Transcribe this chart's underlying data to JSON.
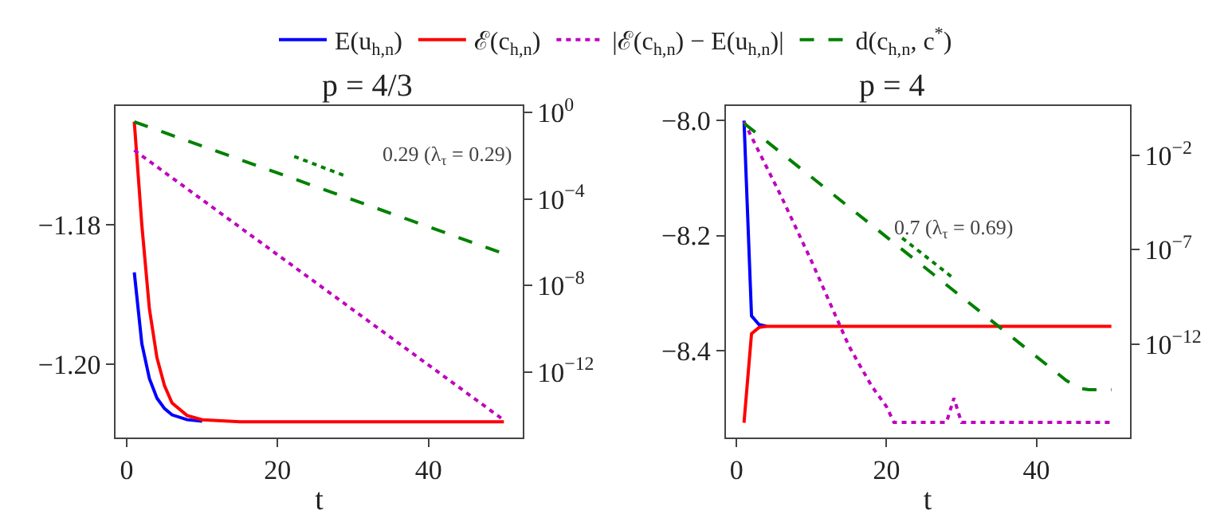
{
  "chart_data": [
    {
      "type": "line",
      "title": "p = 4/3",
      "xlabel": "t",
      "legend": "top",
      "log": "y2",
      "xlim": [
        -1.45,
        52.45
      ],
      "xticks": [
        0,
        20,
        40
      ],
      "ylim": [
        -1.2104,
        -1.163
      ],
      "yticks": [
        {
          "value": -1.18,
          "label": "−1.18"
        },
        {
          "value": -1.2,
          "label": "−1.20"
        }
      ],
      "y2lim": [
        9.6e-16,
        1.95
      ],
      "y2ticks": [
        {
          "value": 1,
          "label": "10$^{0}$"
        },
        {
          "value": 0.0001,
          "label": "10$^{−4}$"
        },
        {
          "value": 1e-08,
          "label": "10$^{−8}$"
        },
        {
          "value": 1e-12,
          "label": "10$^{−12}$"
        }
      ],
      "series": [
        {
          "name": "E(u$_{h,n}$)",
          "color": "#0000ff",
          "line_style": "solid",
          "axis": "y",
          "x": [
            1,
            2,
            3,
            4,
            5,
            6,
            8,
            10
          ],
          "values": [
            -1.1868,
            -1.197,
            -1.202,
            -1.2048,
            -1.2063,
            -1.2072,
            -1.2079,
            -1.2081
          ]
        },
        {
          "name": "ℰ(c$_{h,n}$)",
          "color": "#ff0000",
          "line_style": "solid",
          "axis": "y",
          "x": [
            1,
            2,
            3,
            4,
            5,
            6,
            8,
            10,
            15,
            20,
            30,
            40,
            50
          ],
          "values": [
            -1.1652,
            -1.18,
            -1.192,
            -1.199,
            -1.203,
            -1.2055,
            -1.2073,
            -1.2079,
            -1.2082,
            -1.2082,
            -1.2082,
            -1.2082,
            -1.2082
          ]
        },
        {
          "name": "|ℰ(c$_{h,n}$) − E(u$_{h,n}$)|",
          "color": "#bf00bf",
          "line_style": "dotted",
          "axis": "y2",
          "x": [
            1,
            25,
            50
          ],
          "values": [
            0.018,
            1.4e-08,
            5.9e-15
          ]
        },
        {
          "name": "d(c$_{h,n}$, c$^{*}$)",
          "color": "#008000",
          "line_style": "dashed",
          "axis": "y2",
          "x": [
            1,
            25,
            50
          ],
          "values": [
            0.37,
            0.00038,
            2.95e-07
          ]
        },
        {
          "color": "#008000",
          "line_style": "dotted",
          "axis": "y2",
          "x": [
            22.2,
            29
          ],
          "values": [
            0.0093,
            0.00115
          ]
        }
      ],
      "annotations": [
        "0.29 (λ$_{τ}$ = 0.29)"
      ]
    },
    {
      "type": "line",
      "title": "p = 4",
      "xlabel": "t",
      "log": "y2",
      "xlim": [
        -1.45,
        52.45
      ],
      "xticks": [
        0,
        20,
        40
      ],
      "ylim": [
        -8.551,
        -7.975
      ],
      "yticks": [
        {
          "value": -8.0,
          "label": "−8.0"
        },
        {
          "value": -8.2,
          "label": "−8.2"
        },
        {
          "value": -8.4,
          "label": "−8.4"
        }
      ],
      "y2lim": [
        1.2e-17,
        4
      ],
      "y2ticks": [
        {
          "value": 0.01,
          "label": "10$^{−2}$"
        },
        {
          "value": 1e-07,
          "label": "10$^{−7}$"
        },
        {
          "value": 1e-12,
          "label": "10$^{−12}$"
        }
      ],
      "series": [
        {
          "color": "#0000ff",
          "line_style": "solid",
          "axis": "y",
          "x": [
            1,
            2,
            3,
            4
          ],
          "values": [
            -8.0,
            -8.34,
            -8.355,
            -8.358
          ]
        },
        {
          "color": "#ff0000",
          "line_style": "solid",
          "axis": "y",
          "x": [
            1,
            2,
            3,
            4,
            10,
            20,
            30,
            40,
            50
          ],
          "values": [
            -8.526,
            -8.371,
            -8.36,
            -8.358,
            -8.358,
            -8.358,
            -8.358,
            -8.358,
            -8.358
          ]
        },
        {
          "color": "#bf00bf",
          "line_style": "dotted",
          "axis": "y2",
          "x": [
            1,
            6,
            10,
            15,
            18,
            20,
            21,
            28,
            29,
            30,
            40,
            50
          ],
          "values": [
            0.6,
            6.3e-05,
            2.5e-08,
            7.9e-13,
            6.3e-15,
            5e-16,
            7.2e-17,
            7.2e-17,
            1.4e-15,
            7.2e-17,
            7.2e-17,
            7.2e-17
          ]
        },
        {
          "color": "#008000",
          "line_style": "dashed",
          "axis": "y2",
          "x": [
            1,
            44,
            45,
            46,
            47,
            50
          ],
          "values": [
            0.5,
            1.2e-14,
            7.1e-15,
            4.5e-15,
            3.9e-15,
            3.9e-15
          ]
        },
        {
          "color": "#008000",
          "line_style": "dotted",
          "axis": "y2",
          "x": [
            22.1,
            28.9
          ],
          "values": [
            4.2e-07,
            3.2e-09
          ]
        }
      ],
      "annotations": [
        "0.7 (λ$_{τ}$ = 0.69)"
      ]
    }
  ]
}
